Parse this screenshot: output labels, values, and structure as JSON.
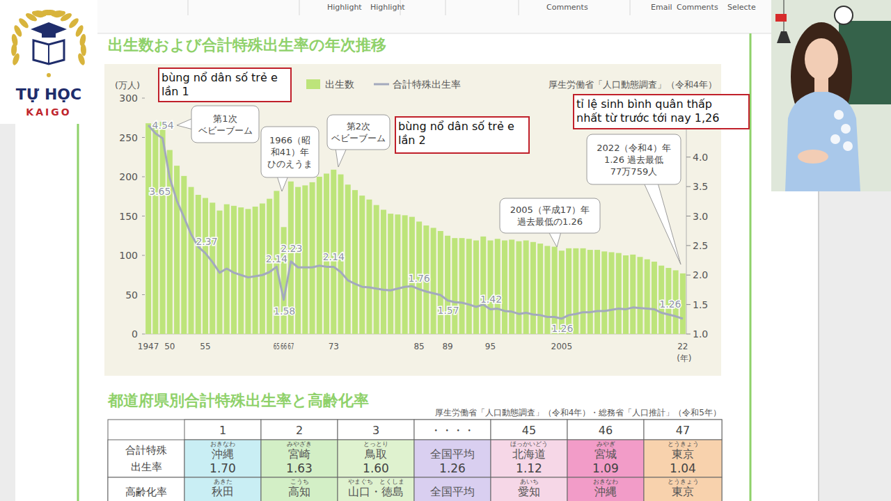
{
  "toolbar": {
    "items": [
      "Highlight",
      "Highlight",
      "Comments",
      "Email",
      "Comments",
      "Selecte"
    ]
  },
  "logo": {
    "title": "TỰ HỌC",
    "subtitle": "KAIGO"
  },
  "chart_data": {
    "type": "bar",
    "title": "出生数および合計特殊出生率の年次推移",
    "source": "厚生労働省「人口動態調査」（令和4年）",
    "y_label": "(万人)",
    "x_label": "(年)",
    "categories": [
      "1947",
      null,
      null,
      "50",
      null,
      null,
      null,
      null,
      "55",
      null,
      null,
      null,
      null,
      null,
      null,
      null,
      null,
      null,
      "65",
      "66",
      "67",
      null,
      null,
      null,
      null,
      null,
      "73",
      null,
      null,
      null,
      null,
      null,
      null,
      null,
      null,
      null,
      null,
      null,
      "85",
      null,
      null,
      null,
      "89",
      null,
      null,
      null,
      null,
      null,
      "95",
      null,
      null,
      null,
      null,
      null,
      null,
      null,
      null,
      null,
      "2005",
      null,
      null,
      null,
      null,
      null,
      null,
      null,
      null,
      null,
      null,
      null,
      null,
      null,
      null,
      null,
      null,
      "22"
    ],
    "series": [
      {
        "name": "出生数",
        "type": "bar",
        "color": "#bde47a",
        "values": [
          268,
          268,
          270,
          234,
          214,
          201,
          187,
          177,
          173,
          167,
          157,
          165,
          163,
          161,
          159,
          162,
          166,
          172,
          182,
          136,
          194,
          187,
          189,
          193,
          200,
          204,
          209,
          203,
          190,
          183,
          176,
          171,
          164,
          158,
          153,
          152,
          151,
          149,
          143,
          138,
          135,
          131,
          125,
          122,
          122,
          121,
          119,
          124,
          119,
          121,
          119,
          120,
          118,
          119,
          117,
          115,
          112,
          111,
          106,
          109,
          109,
          109,
          107,
          107,
          105,
          104,
          103,
          100,
          101,
          98,
          95,
          92,
          87,
          84,
          81,
          77.0759
        ]
      },
      {
        "name": "合計特殊出生率",
        "type": "line",
        "color": "#a3a9bd",
        "axis": "y2",
        "values": [
          4.54,
          4.4,
          4.32,
          3.65,
          3.26,
          2.98,
          2.69,
          2.48,
          2.37,
          2.22,
          2.04,
          2.11,
          2.04,
          2.0,
          1.96,
          1.98,
          2.0,
          2.05,
          2.14,
          1.58,
          2.23,
          2.13,
          2.13,
          2.13,
          2.16,
          2.14,
          2.14,
          2.05,
          1.91,
          1.85,
          1.8,
          1.79,
          1.77,
          1.75,
          1.74,
          1.77,
          1.8,
          1.81,
          1.76,
          1.72,
          1.69,
          1.66,
          1.57,
          1.54,
          1.53,
          1.5,
          1.46,
          1.5,
          1.42,
          1.43,
          1.39,
          1.38,
          1.34,
          1.36,
          1.33,
          1.32,
          1.29,
          1.29,
          1.26,
          1.32,
          1.34,
          1.37,
          1.37,
          1.39,
          1.39,
          1.41,
          1.43,
          1.42,
          1.45,
          1.44,
          1.43,
          1.42,
          1.36,
          1.33,
          1.3,
          1.26
        ],
        "value_labels": [
          "4.54",
          null,
          null,
          "3.65",
          null,
          null,
          null,
          null,
          "2.37",
          null,
          null,
          null,
          null,
          null,
          null,
          null,
          null,
          null,
          "2.14",
          "1.58",
          "2.23",
          null,
          null,
          null,
          null,
          null,
          "2.14",
          null,
          null,
          null,
          null,
          null,
          null,
          null,
          null,
          null,
          null,
          null,
          "1.76",
          null,
          null,
          null,
          "1.57",
          null,
          null,
          null,
          null,
          null,
          "1.42",
          null,
          null,
          null,
          null,
          null,
          null,
          null,
          null,
          null,
          "1.26",
          null,
          null,
          null,
          null,
          null,
          null,
          null,
          null,
          null,
          null,
          null,
          null,
          null,
          null,
          null,
          null,
          "1.26"
        ]
      }
    ],
    "ylim": [
      0,
      300
    ],
    "yticks": [
      0,
      50,
      100,
      150,
      200,
      250,
      300
    ],
    "y2lim": [
      1.0,
      5.0
    ],
    "y2ticks": [
      {
        "value": 1.0,
        "label": "1.0"
      },
      {
        "value": 1.5,
        "label": "1.5"
      },
      {
        "value": 2.0,
        "label": "2.0"
      },
      {
        "value": 2.5,
        "label": "2.5"
      },
      {
        "value": 3.0,
        "label": "3.0"
      },
      {
        "value": 3.5,
        "label": "3.5"
      },
      {
        "value": 4.0,
        "label": "4.0"
      }
    ],
    "grid": false,
    "legend": "top",
    "annotations": [
      {
        "text": "第1次\nベビーブーム"
      },
      {
        "text": "1966（昭\n和41）年\nひのえうま"
      },
      {
        "text": "第2次\nベビーブーム"
      },
      {
        "text": "2005（平成17）年\n過去最低の1.26"
      },
      {
        "text": "2022（令和4）年\n1.26 過去最低\n77万759人"
      }
    ],
    "highlights": [
      {
        "text": "bùng nổ dân số trẻ e\nlần 1"
      },
      {
        "text": "bùng nổ dân số trẻ e\nlần 2"
      },
      {
        "text": "tỉ lệ sinh bình quân thấp\nnhất từ trước tới nay 1,26"
      }
    ]
  },
  "table": {
    "title": "都道府県別合計特殊出生率と高齢化率",
    "source": "厚生労働省「人口動態調査」（令和4年）・総務省「人口推計」（令和5年）",
    "header": [
      "1",
      "2",
      "3",
      "・・・・",
      "45",
      "46",
      "47"
    ],
    "colors": [
      "#c9eef4",
      "#d3efc6",
      "#dff2cf",
      "#d9cff0",
      "#f6d7e7",
      "#f29cc8",
      "#f8d2ad"
    ],
    "rows": [
      {
        "label": "合計特殊\n出生率",
        "cells": [
          {
            "name": "沖縄",
            "reading": "おきなわ",
            "value": "1.70"
          },
          {
            "name": "宮崎",
            "reading": "みやざき",
            "value": "1.63"
          },
          {
            "name": "鳥取",
            "reading": "とっとり",
            "value": "1.60"
          },
          {
            "name": "全国平均",
            "value": "1.26"
          },
          {
            "name": "北海道",
            "reading": "ほっかいどう",
            "value": "1.12"
          },
          {
            "name": "宮城",
            "reading": "みやぎ",
            "value": "1.09"
          },
          {
            "name": "東京",
            "reading": "とうきょう",
            "value": "1.04"
          }
        ]
      },
      {
        "label": "高齢化率",
        "cells": [
          {
            "name": "秋田",
            "reading": "あきた"
          },
          {
            "name": "高知",
            "reading": "こうち"
          },
          {
            "name": "山口・徳島",
            "reading": "やまぐち　とくしま"
          },
          {
            "name": "全国平均"
          },
          {
            "name": "愛知",
            "reading": "あいち"
          },
          {
            "name": "沖縄",
            "reading": "おきなわ"
          },
          {
            "name": "東京",
            "reading": "とうきょう"
          }
        ]
      }
    ]
  }
}
